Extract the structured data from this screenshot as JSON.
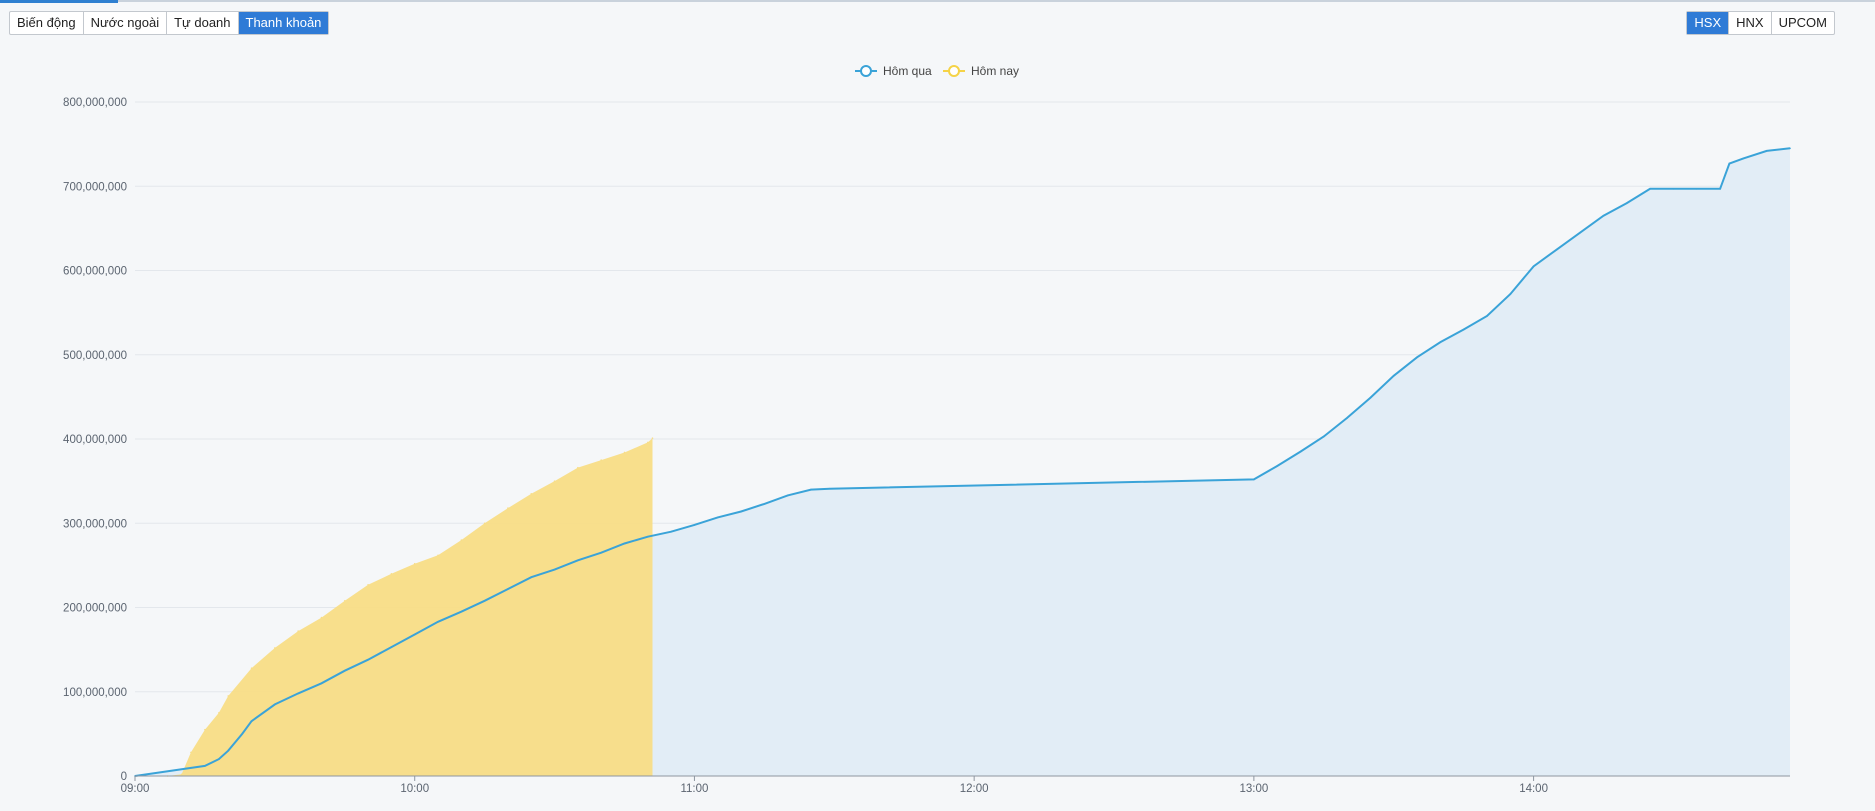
{
  "tabs": [
    {
      "label": "Biến động",
      "active": false
    },
    {
      "label": "Nước ngoài",
      "active": false
    },
    {
      "label": "Tự doanh",
      "active": false
    },
    {
      "label": "Thanh khoản",
      "active": true
    }
  ],
  "exchanges": [
    {
      "label": "HSX",
      "active": true
    },
    {
      "label": "HNX",
      "active": false
    },
    {
      "label": "UPCOM",
      "active": false
    }
  ],
  "colors": {
    "accent": "#2f7bd6",
    "series_yesterday_line": "#3aa3d8",
    "series_yesterday_fill": "#e2edf6",
    "series_today_fill": "#f8dd86"
  },
  "chart_data": {
    "type": "area",
    "title": "",
    "xlabel": "",
    "ylabel": "",
    "ylim": [
      0,
      800000000
    ],
    "y_ticks": [
      0,
      100000000,
      200000000,
      300000000,
      400000000,
      500000000,
      600000000,
      700000000,
      800000000
    ],
    "y_tick_labels": [
      "0",
      "100,000,000",
      "200,000,000",
      "300,000,000",
      "400,000,000",
      "500,000,000",
      "600,000,000",
      "700,000,000",
      "800,000,000"
    ],
    "xlim": [
      "09:00",
      "14:55"
    ],
    "x_ticks": [
      "09:00",
      "10:00",
      "11:00",
      "12:00",
      "13:00",
      "14:00"
    ],
    "grid": true,
    "legend_position": "top-center",
    "series": [
      {
        "name": "Hôm qua",
        "x": [
          "09:00",
          "09:10",
          "09:15",
          "09:18",
          "09:20",
          "09:23",
          "09:25",
          "09:30",
          "09:35",
          "09:40",
          "09:45",
          "09:50",
          "09:55",
          "10:00",
          "10:05",
          "10:10",
          "10:15",
          "10:20",
          "10:25",
          "10:30",
          "10:35",
          "10:40",
          "10:45",
          "10:50",
          "10:55",
          "11:00",
          "11:05",
          "11:10",
          "11:15",
          "11:20",
          "11:25",
          "11:29",
          "13:00",
          "13:05",
          "13:10",
          "13:15",
          "13:20",
          "13:25",
          "13:30",
          "13:35",
          "13:40",
          "13:45",
          "13:50",
          "13:55",
          "14:00",
          "14:05",
          "14:10",
          "14:15",
          "14:20",
          "14:25",
          "14:30",
          "14:35",
          "14:40",
          "14:42",
          "14:45",
          "14:50",
          "14:55"
        ],
        "values": [
          0,
          8000000,
          12000000,
          20000000,
          30000000,
          50000000,
          65000000,
          85000000,
          98000000,
          110000000,
          125000000,
          138000000,
          153000000,
          168000000,
          183000000,
          195000000,
          208000000,
          222000000,
          236000000,
          245000000,
          256000000,
          265000000,
          276000000,
          284000000,
          290000000,
          298000000,
          307000000,
          314000000,
          323000000,
          333000000,
          340000000,
          341000000,
          352000000,
          368000000,
          385000000,
          403000000,
          425000000,
          449000000,
          475000000,
          497000000,
          515000000,
          530000000,
          546000000,
          572000000,
          605000000,
          625000000,
          645000000,
          665000000,
          680000000,
          697000000,
          697000000,
          697000000,
          697000000,
          727000000,
          733000000,
          742000000,
          745000000
        ]
      },
      {
        "name": "Hôm nay",
        "x": [
          "09:07",
          "09:10",
          "09:12",
          "09:15",
          "09:18",
          "09:20",
          "09:25",
          "09:30",
          "09:35",
          "09:40",
          "09:45",
          "09:50",
          "09:55",
          "10:00",
          "10:05",
          "10:10",
          "10:15",
          "10:20",
          "10:25",
          "10:30",
          "10:35",
          "10:40",
          "10:45",
          "10:50",
          "10:51"
        ],
        "values": [
          0,
          2000000,
          28000000,
          55000000,
          75000000,
          95000000,
          128000000,
          152000000,
          172000000,
          188000000,
          208000000,
          227000000,
          240000000,
          252000000,
          262000000,
          280000000,
          300000000,
          318000000,
          335000000,
          350000000,
          366000000,
          375000000,
          384000000,
          396000000,
          401000000
        ]
      }
    ]
  }
}
